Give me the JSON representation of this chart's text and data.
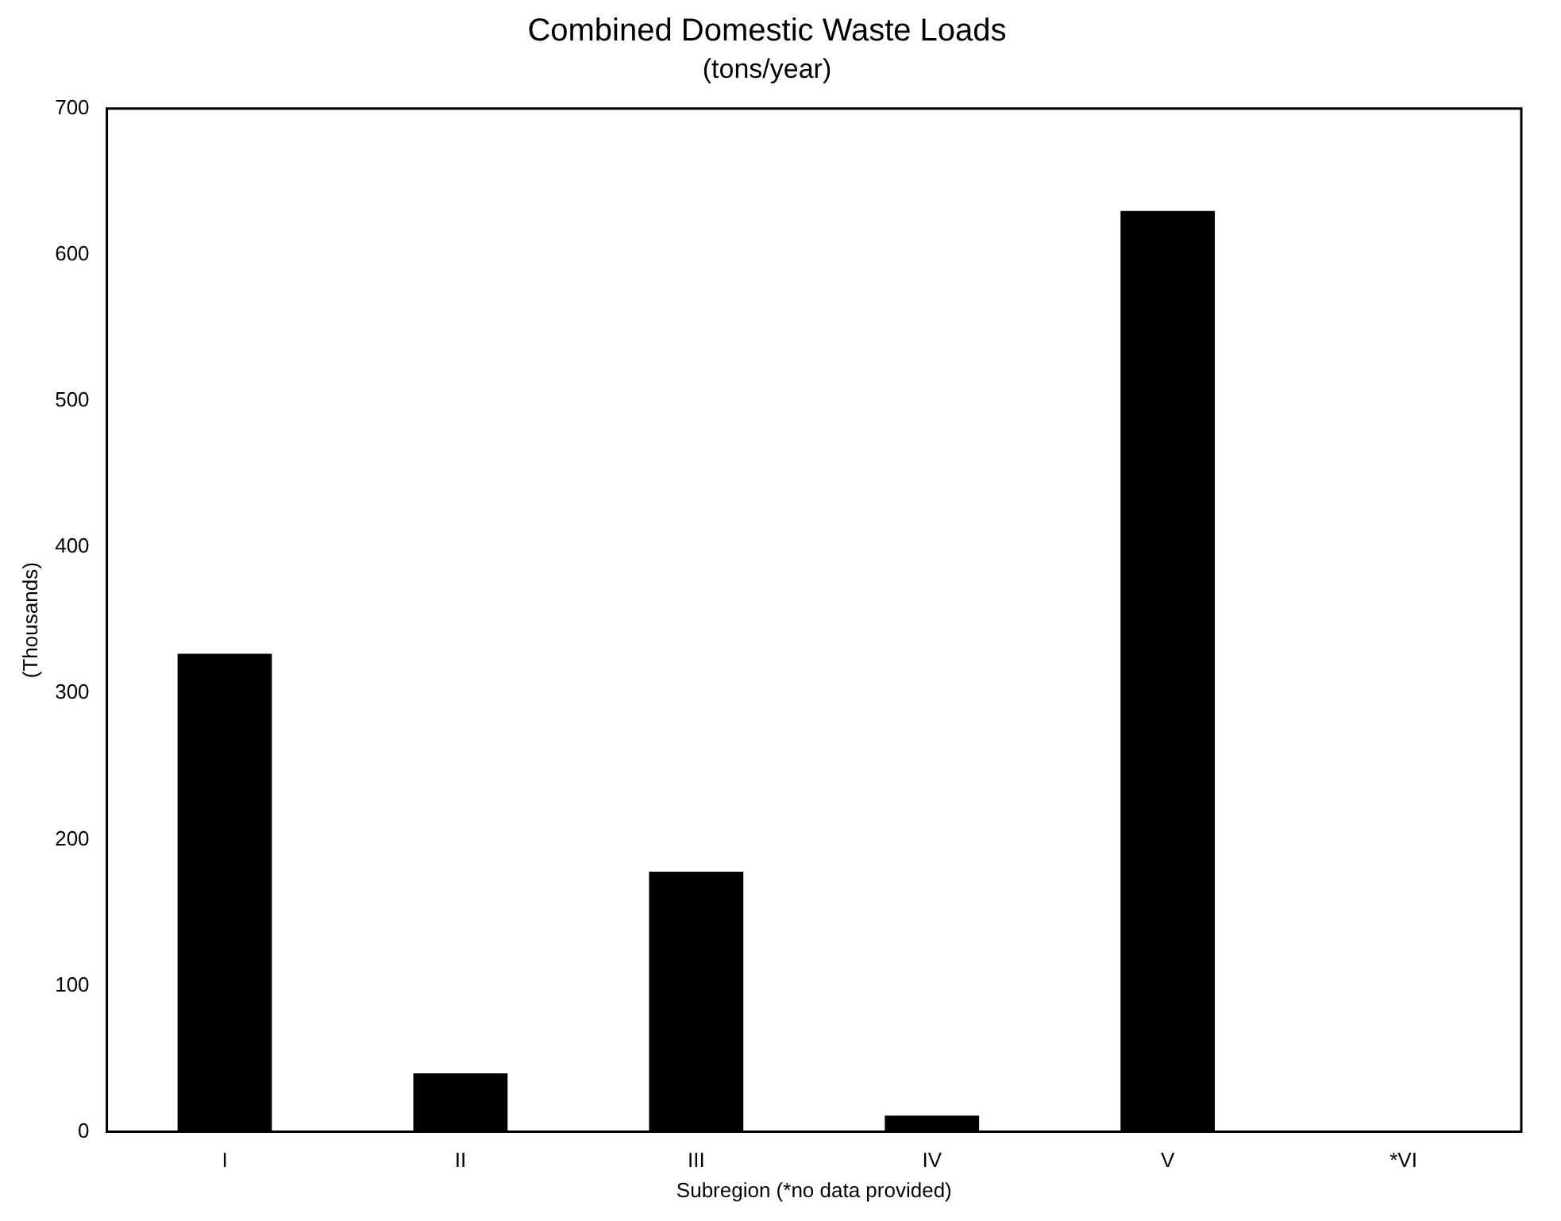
{
  "chart_data": {
    "type": "bar",
    "title": "Combined Domestic Waste Loads",
    "subtitle": "(tons/year)",
    "xlabel": "Subregion (*no data provided)",
    "ylabel": "(Thousands)",
    "categories": [
      "I",
      "II",
      "III",
      "IV",
      "V",
      "*VI"
    ],
    "values": [
      327,
      40,
      178,
      11,
      630,
      null
    ],
    "color": "#000000",
    "ylim": [
      0,
      700
    ],
    "yticks": [
      0,
      100,
      200,
      300,
      400,
      500,
      600,
      700
    ],
    "grid": false
  }
}
